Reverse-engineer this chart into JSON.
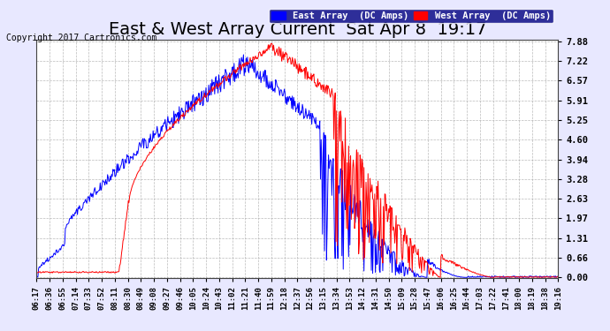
{
  "title": "East & West Array Current  Sat Apr 8  19:17",
  "copyright": "Copyright 2017 Cartronics.com",
  "legend_east": "East Array  (DC Amps)",
  "legend_west": "West Array  (DC Amps)",
  "east_color": "#0000FF",
  "west_color": "#FF0000",
  "yticks": [
    0.0,
    0.66,
    1.31,
    1.97,
    2.63,
    3.28,
    3.94,
    4.6,
    5.25,
    5.91,
    6.57,
    7.22,
    7.88
  ],
  "ymax": 7.88,
  "ymin": 0.0,
  "background_color": "#E8E8FF",
  "plot_background": "#FFFFFF",
  "grid_color": "#AAAAAA",
  "xtick_labels": [
    "06:17",
    "06:36",
    "06:55",
    "07:14",
    "07:33",
    "07:52",
    "08:11",
    "08:30",
    "08:49",
    "09:08",
    "09:27",
    "09:46",
    "10:05",
    "10:24",
    "10:43",
    "11:02",
    "11:21",
    "11:40",
    "11:59",
    "12:18",
    "12:37",
    "12:56",
    "13:15",
    "13:34",
    "13:53",
    "14:12",
    "14:31",
    "14:50",
    "15:09",
    "15:28",
    "15:47",
    "16:06",
    "16:25",
    "16:44",
    "17:03",
    "17:22",
    "17:41",
    "18:00",
    "18:19",
    "18:38",
    "19:16"
  ],
  "title_fontsize": 14,
  "axis_fontsize": 8,
  "legend_fontsize": 8
}
